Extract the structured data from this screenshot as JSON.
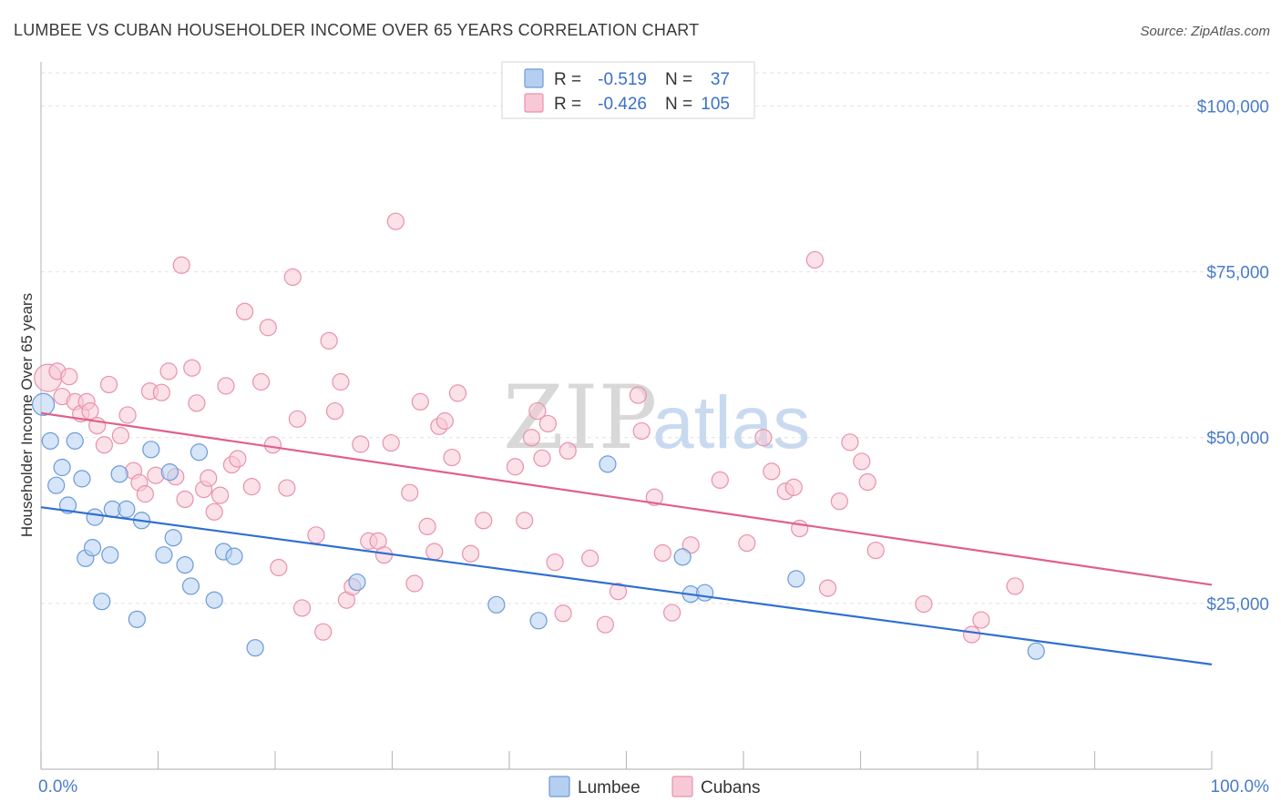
{
  "title": "LUMBEE VS CUBAN HOUSEHOLDER INCOME OVER 65 YEARS CORRELATION CHART",
  "source": "Source: ZipAtlas.com",
  "watermark": {
    "zip": "ZIP",
    "atlas": "atlas"
  },
  "legend": {
    "rows": [
      {
        "r_label": "R =",
        "r_value": "-0.519",
        "n_label": "N =",
        "n_value": "37"
      },
      {
        "r_label": "R =",
        "r_value": "-0.426",
        "n_label": "N =",
        "n_value": "105"
      }
    ]
  },
  "bottom_legend": [
    "Lumbee",
    "Cubans"
  ],
  "colors": {
    "lumbee_fill": "#b5cff0",
    "lumbee_stroke": "#6d9ad8",
    "lumbee_line": "#2f6fd0",
    "cubans_fill": "#f8c8d6",
    "cubans_stroke": "#e892ac",
    "cubans_line": "#e0608a"
  },
  "chart_data": {
    "type": "scatter",
    "ylabel": "Householder Income Over 65 years",
    "xlim": [
      0,
      100
    ],
    "ylim": [
      0,
      105000
    ],
    "x_tick_labels": [
      "0.0%",
      "100.0%"
    ],
    "y_ticks": [
      25000,
      50000,
      75000,
      100000
    ],
    "y_tick_labels": [
      "$25,000",
      "$50,000",
      "$75,000",
      "$100,000"
    ],
    "series": [
      {
        "name": "Lumbee",
        "trend": [
          [
            0,
            39500
          ],
          [
            100,
            15800
          ]
        ],
        "points": [
          [
            0.2,
            55000,
            2
          ],
          [
            0.8,
            49500,
            1
          ],
          [
            1.3,
            42800,
            1
          ],
          [
            1.8,
            45500,
            1
          ],
          [
            2.3,
            39800,
            1
          ],
          [
            2.9,
            49500,
            1
          ],
          [
            3.5,
            43800,
            1
          ],
          [
            3.8,
            31800,
            1
          ],
          [
            4.4,
            33400,
            1
          ],
          [
            4.6,
            38000,
            1
          ],
          [
            5.2,
            25300,
            1
          ],
          [
            5.9,
            32300,
            1
          ],
          [
            6.1,
            39200,
            1
          ],
          [
            6.7,
            44500,
            1
          ],
          [
            7.3,
            39200,
            1
          ],
          [
            8.2,
            22600,
            1
          ],
          [
            8.6,
            37500,
            1
          ],
          [
            9.4,
            48200,
            1
          ],
          [
            10.5,
            32300,
            1
          ],
          [
            11.0,
            44800,
            1
          ],
          [
            11.3,
            34900,
            1
          ],
          [
            12.3,
            30800,
            1
          ],
          [
            12.8,
            27600,
            1
          ],
          [
            13.5,
            47800,
            1
          ],
          [
            14.8,
            25500,
            1
          ],
          [
            15.6,
            32800,
            1
          ],
          [
            16.5,
            32100,
            1
          ],
          [
            18.3,
            18300,
            1
          ],
          [
            27.0,
            28200,
            1
          ],
          [
            38.9,
            24800,
            1
          ],
          [
            42.5,
            22400,
            1
          ],
          [
            48.4,
            46000,
            1
          ],
          [
            54.8,
            32000,
            1
          ],
          [
            55.5,
            26400,
            1
          ],
          [
            56.7,
            26600,
            1
          ],
          [
            64.5,
            28700,
            1
          ],
          [
            85.0,
            17800,
            1
          ]
        ]
      },
      {
        "name": "Cubans",
        "trend": [
          [
            0,
            53700
          ],
          [
            100,
            27800
          ]
        ],
        "points": [
          [
            0.6,
            59000,
            3
          ],
          [
            1.4,
            60000,
            1
          ],
          [
            1.8,
            56200,
            1
          ],
          [
            2.4,
            59200,
            1
          ],
          [
            2.9,
            55400,
            1
          ],
          [
            3.4,
            53600,
            1
          ],
          [
            3.9,
            55400,
            1
          ],
          [
            4.2,
            54000,
            1
          ],
          [
            4.8,
            51800,
            1
          ],
          [
            5.4,
            48900,
            1
          ],
          [
            5.8,
            58000,
            1
          ],
          [
            6.8,
            50300,
            1
          ],
          [
            7.4,
            53400,
            1
          ],
          [
            7.9,
            45000,
            1
          ],
          [
            8.4,
            43200,
            1
          ],
          [
            8.9,
            41500,
            1
          ],
          [
            9.3,
            57000,
            1
          ],
          [
            9.8,
            44300,
            1
          ],
          [
            10.3,
            56800,
            1
          ],
          [
            10.9,
            60000,
            1
          ],
          [
            11.5,
            44100,
            1
          ],
          [
            12.0,
            76000,
            1
          ],
          [
            12.3,
            40700,
            1
          ],
          [
            12.9,
            60500,
            1
          ],
          [
            13.3,
            55200,
            1
          ],
          [
            13.9,
            42200,
            1
          ],
          [
            14.3,
            43900,
            1
          ],
          [
            14.8,
            38800,
            1
          ],
          [
            15.3,
            41300,
            1
          ],
          [
            15.8,
            57800,
            1
          ],
          [
            16.3,
            45900,
            1
          ],
          [
            16.8,
            46800,
            1
          ],
          [
            17.4,
            69000,
            1
          ],
          [
            18.0,
            42600,
            1
          ],
          [
            18.8,
            58400,
            1
          ],
          [
            19.4,
            66600,
            1
          ],
          [
            19.8,
            48900,
            1
          ],
          [
            20.3,
            30400,
            1
          ],
          [
            21.0,
            42400,
            1
          ],
          [
            21.5,
            74200,
            1
          ],
          [
            21.9,
            52800,
            1
          ],
          [
            22.3,
            24300,
            1
          ],
          [
            23.5,
            35300,
            1
          ],
          [
            24.1,
            20700,
            1
          ],
          [
            24.6,
            64600,
            1
          ],
          [
            25.1,
            54000,
            1
          ],
          [
            25.6,
            58400,
            1
          ],
          [
            26.1,
            25500,
            1
          ],
          [
            26.6,
            27500,
            1
          ],
          [
            27.3,
            49000,
            1
          ],
          [
            28.0,
            34400,
            1
          ],
          [
            28.8,
            34400,
            1
          ],
          [
            29.3,
            32300,
            1
          ],
          [
            29.9,
            49200,
            1
          ],
          [
            30.3,
            82600,
            1
          ],
          [
            31.5,
            41700,
            1
          ],
          [
            31.9,
            28000,
            1
          ],
          [
            32.4,
            55400,
            1
          ],
          [
            33.0,
            36600,
            1
          ],
          [
            33.6,
            32800,
            1
          ],
          [
            34.0,
            51700,
            1
          ],
          [
            34.5,
            52500,
            1
          ],
          [
            35.1,
            47000,
            1
          ],
          [
            35.6,
            56700,
            1
          ],
          [
            36.7,
            32500,
            1
          ],
          [
            37.8,
            37500,
            1
          ],
          [
            40.5,
            45600,
            1
          ],
          [
            41.3,
            37500,
            1
          ],
          [
            41.9,
            50000,
            1
          ],
          [
            42.4,
            54000,
            1
          ],
          [
            42.8,
            46900,
            1
          ],
          [
            43.3,
            52100,
            1
          ],
          [
            43.9,
            31200,
            1
          ],
          [
            44.6,
            23500,
            1
          ],
          [
            45.0,
            48000,
            1
          ],
          [
            46.9,
            31800,
            1
          ],
          [
            48.2,
            21800,
            1
          ],
          [
            49.3,
            26800,
            1
          ],
          [
            51.0,
            56400,
            1
          ],
          [
            51.3,
            51000,
            1
          ],
          [
            52.4,
            41000,
            1
          ],
          [
            53.1,
            32600,
            1
          ],
          [
            53.9,
            23600,
            1
          ],
          [
            55.5,
            33800,
            1
          ],
          [
            58.0,
            43600,
            1
          ],
          [
            60.3,
            34100,
            1
          ],
          [
            61.7,
            50000,
            1
          ],
          [
            62.4,
            44900,
            1
          ],
          [
            63.6,
            41900,
            1
          ],
          [
            64.3,
            42500,
            1
          ],
          [
            64.8,
            36300,
            1
          ],
          [
            66.1,
            76800,
            1
          ],
          [
            67.2,
            27300,
            1
          ],
          [
            68.2,
            40400,
            1
          ],
          [
            69.1,
            49300,
            1
          ],
          [
            70.1,
            46400,
            1
          ],
          [
            70.6,
            43300,
            1
          ],
          [
            71.3,
            33000,
            1
          ],
          [
            75.4,
            24900,
            1
          ],
          [
            79.5,
            20300,
            1
          ],
          [
            80.3,
            22500,
            1
          ],
          [
            83.2,
            27600,
            1
          ]
        ]
      }
    ],
    "legend_position": "top-center",
    "grid": "horizontal dashed"
  }
}
